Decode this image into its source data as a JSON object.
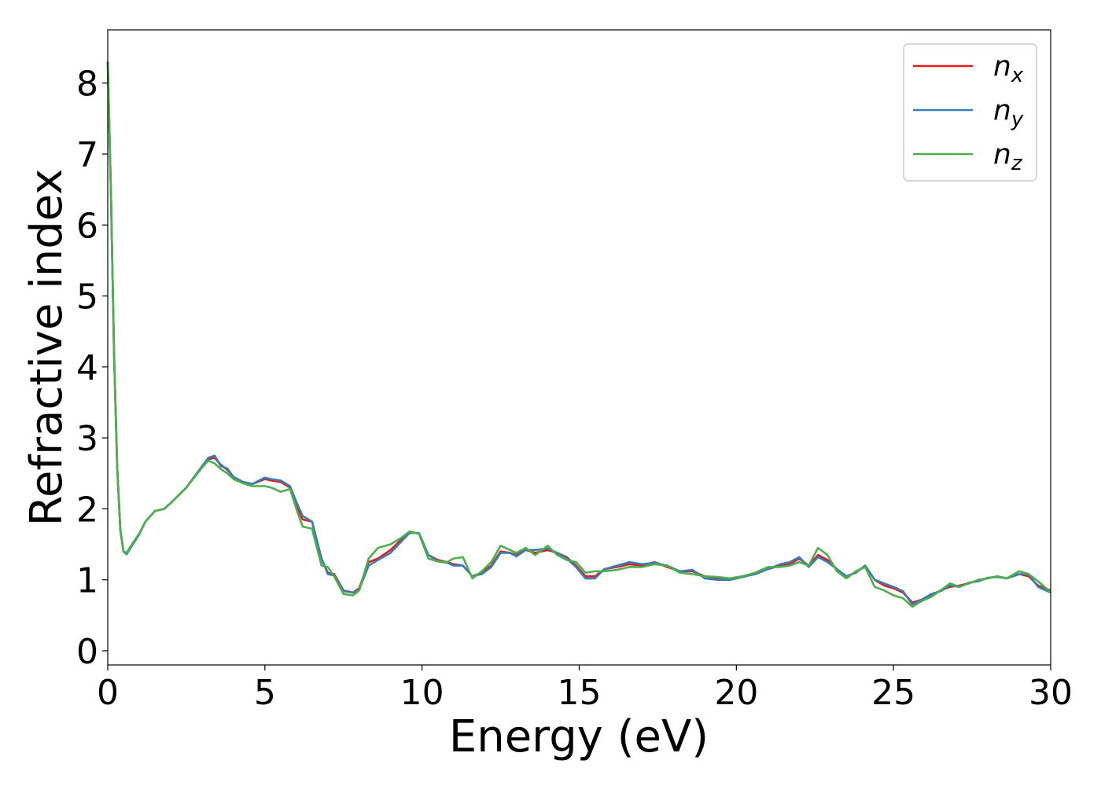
{
  "chart_data": {
    "type": "line",
    "xlabel": "Energy (eV)",
    "ylabel": "Refractive index",
    "xlim": [
      0,
      30
    ],
    "ylim": [
      -0.2,
      8.75
    ],
    "xticks": [
      0,
      5,
      10,
      15,
      20,
      25,
      30
    ],
    "yticks": [
      0,
      1,
      2,
      3,
      4,
      5,
      6,
      7,
      8
    ],
    "grid": false,
    "legend_position": "top-right",
    "series": [
      {
        "name": "n",
        "subscript": "x",
        "color": "#e41a1c",
        "x": [
          0,
          0.1,
          0.2,
          0.3,
          0.4,
          0.5,
          0.6,
          0.8,
          1.0,
          1.2,
          1.5,
          1.8,
          2.0,
          2.5,
          3.0,
          3.2,
          3.4,
          3.6,
          3.8,
          4.0,
          4.3,
          4.6,
          5.0,
          5.2,
          5.5,
          5.8,
          6.0,
          6.2,
          6.5,
          6.8,
          7.0,
          7.2,
          7.5,
          7.8,
          8.0,
          8.3,
          8.6,
          9.0,
          9.3,
          9.6,
          9.9,
          10.2,
          10.5,
          10.8,
          11.0,
          11.3,
          11.6,
          11.9,
          12.2,
          12.5,
          12.8,
          13.0,
          13.3,
          13.6,
          14.0,
          14.3,
          14.6,
          14.9,
          15.2,
          15.5,
          15.8,
          16.2,
          16.6,
          17.0,
          17.4,
          17.8,
          18.2,
          18.6,
          19.0,
          19.4,
          19.8,
          20.2,
          20.6,
          21.0,
          21.4,
          21.7,
          22.0,
          22.3,
          22.6,
          22.9,
          23.2,
          23.5,
          23.8,
          24.1,
          24.4,
          24.7,
          25.0,
          25.3,
          25.6,
          25.9,
          26.2,
          26.5,
          26.8,
          27.1,
          27.4,
          27.7,
          28.0,
          28.3,
          28.6,
          29.0,
          29.3,
          29.6,
          30.0
        ],
        "y": [
          8.3,
          6.5,
          4.2,
          2.6,
          1.7,
          1.4,
          1.38,
          1.52,
          1.65,
          1.82,
          1.97,
          2.0,
          2.08,
          2.3,
          2.6,
          2.7,
          2.72,
          2.62,
          2.55,
          2.45,
          2.38,
          2.35,
          2.42,
          2.4,
          2.38,
          2.3,
          2.05,
          1.85,
          1.82,
          1.3,
          1.1,
          1.08,
          0.85,
          0.82,
          0.88,
          1.25,
          1.3,
          1.42,
          1.55,
          1.68,
          1.65,
          1.35,
          1.28,
          1.25,
          1.22,
          1.2,
          1.05,
          1.1,
          1.2,
          1.4,
          1.38,
          1.35,
          1.42,
          1.38,
          1.42,
          1.38,
          1.32,
          1.2,
          1.05,
          1.05,
          1.15,
          1.18,
          1.22,
          1.2,
          1.25,
          1.18,
          1.12,
          1.12,
          1.05,
          1.02,
          1.02,
          1.05,
          1.08,
          1.15,
          1.2,
          1.22,
          1.3,
          1.2,
          1.35,
          1.28,
          1.15,
          1.05,
          1.1,
          1.2,
          1.0,
          0.92,
          0.88,
          0.82,
          0.68,
          0.72,
          0.78,
          0.85,
          0.9,
          0.92,
          0.95,
          1.0,
          1.02,
          1.05,
          1.02,
          1.08,
          1.05,
          0.92,
          0.85
        ]
      },
      {
        "name": "n",
        "subscript": "y",
        "color": "#377eb8",
        "x": [
          0,
          0.1,
          0.2,
          0.3,
          0.4,
          0.5,
          0.6,
          0.8,
          1.0,
          1.2,
          1.5,
          1.8,
          2.0,
          2.5,
          3.0,
          3.2,
          3.4,
          3.6,
          3.8,
          4.0,
          4.3,
          4.6,
          5.0,
          5.2,
          5.5,
          5.8,
          6.0,
          6.2,
          6.5,
          6.8,
          7.0,
          7.2,
          7.5,
          7.8,
          8.0,
          8.3,
          8.6,
          9.0,
          9.3,
          9.6,
          9.9,
          10.2,
          10.5,
          10.8,
          11.0,
          11.3,
          11.6,
          11.9,
          12.2,
          12.5,
          12.8,
          13.0,
          13.3,
          13.6,
          14.0,
          14.3,
          14.6,
          14.9,
          15.2,
          15.5,
          15.8,
          16.2,
          16.6,
          17.0,
          17.4,
          17.8,
          18.2,
          18.6,
          19.0,
          19.4,
          19.8,
          20.2,
          20.6,
          21.0,
          21.4,
          21.7,
          22.0,
          22.3,
          22.6,
          22.9,
          23.2,
          23.5,
          23.8,
          24.1,
          24.4,
          24.7,
          25.0,
          25.3,
          25.6,
          25.9,
          26.2,
          26.5,
          26.8,
          27.1,
          27.4,
          27.7,
          28.0,
          28.3,
          28.6,
          29.0,
          29.3,
          29.6,
          30.0
        ],
        "y": [
          8.3,
          6.5,
          4.2,
          2.6,
          1.7,
          1.4,
          1.36,
          1.5,
          1.64,
          1.82,
          1.97,
          2.0,
          2.08,
          2.3,
          2.6,
          2.72,
          2.75,
          2.6,
          2.57,
          2.45,
          2.38,
          2.35,
          2.44,
          2.42,
          2.4,
          2.32,
          2.1,
          1.9,
          1.82,
          1.3,
          1.08,
          1.06,
          0.84,
          0.82,
          0.86,
          1.2,
          1.28,
          1.38,
          1.52,
          1.66,
          1.66,
          1.35,
          1.26,
          1.24,
          1.2,
          1.2,
          1.05,
          1.08,
          1.18,
          1.38,
          1.38,
          1.33,
          1.42,
          1.42,
          1.44,
          1.38,
          1.3,
          1.18,
          1.02,
          1.02,
          1.15,
          1.2,
          1.25,
          1.22,
          1.24,
          1.2,
          1.12,
          1.14,
          1.02,
          1.0,
          1.0,
          1.04,
          1.08,
          1.15,
          1.22,
          1.25,
          1.32,
          1.18,
          1.32,
          1.25,
          1.15,
          1.05,
          1.1,
          1.2,
          1.0,
          0.95,
          0.9,
          0.84,
          0.65,
          0.72,
          0.8,
          0.84,
          0.92,
          0.9,
          0.96,
          0.98,
          1.03,
          1.04,
          1.02,
          1.08,
          1.08,
          0.9,
          0.82
        ]
      },
      {
        "name": "n",
        "subscript": "z",
        "color": "#4daf4a",
        "x": [
          0,
          0.1,
          0.2,
          0.3,
          0.4,
          0.5,
          0.6,
          0.8,
          1.0,
          1.2,
          1.5,
          1.8,
          2.0,
          2.5,
          3.0,
          3.2,
          3.4,
          3.6,
          3.8,
          4.0,
          4.3,
          4.6,
          5.0,
          5.2,
          5.5,
          5.8,
          6.0,
          6.2,
          6.5,
          6.8,
          7.0,
          7.2,
          7.5,
          7.8,
          8.0,
          8.3,
          8.6,
          9.0,
          9.3,
          9.6,
          9.9,
          10.2,
          10.5,
          10.8,
          11.0,
          11.3,
          11.6,
          11.9,
          12.2,
          12.5,
          12.8,
          13.0,
          13.3,
          13.6,
          14.0,
          14.3,
          14.6,
          14.9,
          15.2,
          15.5,
          15.8,
          16.2,
          16.6,
          17.0,
          17.4,
          17.8,
          18.2,
          18.6,
          19.0,
          19.4,
          19.8,
          20.2,
          20.6,
          21.0,
          21.4,
          21.7,
          22.0,
          22.3,
          22.6,
          22.9,
          23.2,
          23.5,
          23.8,
          24.1,
          24.4,
          24.7,
          25.0,
          25.3,
          25.6,
          25.9,
          26.2,
          26.5,
          26.8,
          27.1,
          27.4,
          27.7,
          28.0,
          28.3,
          28.6,
          29.0,
          29.3,
          29.6,
          30.0
        ],
        "y": [
          8.3,
          6.5,
          4.2,
          2.6,
          1.7,
          1.4,
          1.38,
          1.52,
          1.65,
          1.82,
          1.97,
          2.0,
          2.08,
          2.3,
          2.58,
          2.68,
          2.64,
          2.56,
          2.5,
          2.42,
          2.36,
          2.32,
          2.32,
          2.3,
          2.24,
          2.28,
          2.0,
          1.75,
          1.72,
          1.2,
          1.18,
          1.05,
          0.8,
          0.78,
          0.85,
          1.3,
          1.45,
          1.5,
          1.58,
          1.68,
          1.65,
          1.3,
          1.26,
          1.25,
          1.3,
          1.32,
          1.02,
          1.12,
          1.25,
          1.48,
          1.42,
          1.38,
          1.45,
          1.35,
          1.48,
          1.35,
          1.28,
          1.25,
          1.1,
          1.12,
          1.12,
          1.14,
          1.18,
          1.18,
          1.22,
          1.2,
          1.1,
          1.08,
          1.05,
          1.04,
          1.02,
          1.05,
          1.1,
          1.18,
          1.18,
          1.2,
          1.25,
          1.2,
          1.45,
          1.35,
          1.12,
          1.02,
          1.12,
          1.18,
          0.9,
          0.85,
          0.78,
          0.74,
          0.62,
          0.7,
          0.76,
          0.85,
          0.95,
          0.9,
          0.95,
          1.0,
          1.02,
          1.05,
          1.02,
          1.12,
          1.08,
          0.98,
          0.82
        ]
      }
    ]
  }
}
